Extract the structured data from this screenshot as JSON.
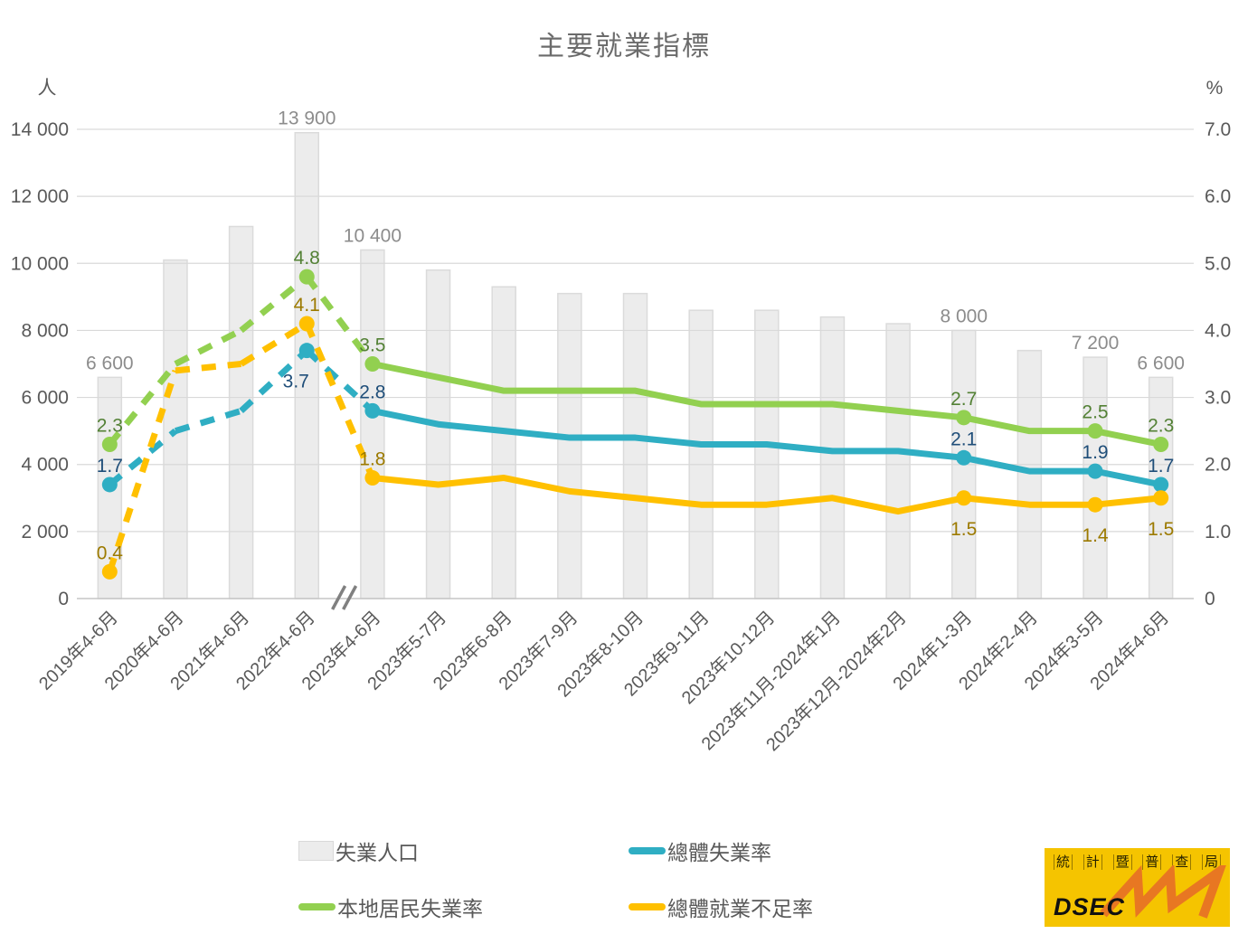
{
  "title": "主要就業指標",
  "left_axis": {
    "unit": "人",
    "ticks": [
      "14 000",
      "12 000",
      "10 000",
      "8 000",
      "6 000",
      "4 000",
      "2 000",
      "0"
    ]
  },
  "right_axis": {
    "unit": "%",
    "ticks": [
      "7.0",
      "6.0",
      "5.0",
      "4.0",
      "3.0",
      "2.0",
      "1.0",
      "0"
    ]
  },
  "chart_data": {
    "type": "bar+line",
    "categories": [
      "2019年4-6月",
      "2020年4-6月",
      "2021年4-6月",
      "2022年4-6月",
      "2023年4-6月",
      "2023年5-7月",
      "2023年6-8月",
      "2023年7-9月",
      "2023年8-10月",
      "2023年9-11月",
      "2023年10-12月",
      "2023年11月-2024年1月",
      "2023年12月-2024年2月",
      "2024年1-3月",
      "2024年2-4月",
      "2024年3-5月",
      "2024年4-6月"
    ],
    "ylim_left": [
      0,
      14000
    ],
    "ylim_right": [
      0,
      7.0
    ],
    "grid_step_left": 2000,
    "axis_break_between": [
      3,
      4
    ],
    "dashed_until_index": 4,
    "bars": {
      "name": "失業人口",
      "unit": "人",
      "color": "#ECECEC",
      "border_color": "#DBDBDB",
      "label_color": "#8C8C8C",
      "values": [
        6600,
        10100,
        11100,
        13900,
        10400,
        9800,
        9300,
        9100,
        9100,
        8600,
        8600,
        8400,
        8200,
        8000,
        7400,
        7200,
        6600
      ],
      "labels": [
        "6 600",
        null,
        null,
        "13 900",
        "10 400",
        null,
        null,
        null,
        null,
        null,
        null,
        null,
        null,
        "8 000",
        null,
        "7 200",
        "6 600"
      ]
    },
    "series": [
      {
        "name": "本地居民失業率",
        "color": "#92D050",
        "label_color": "#538135",
        "values": [
          2.3,
          3.5,
          4.0,
          4.8,
          3.5,
          3.3,
          3.1,
          3.1,
          3.1,
          2.9,
          2.9,
          2.9,
          2.8,
          2.7,
          2.5,
          2.5,
          2.3
        ],
        "labels": [
          "2.3",
          null,
          null,
          "4.8",
          "3.5",
          null,
          null,
          null,
          null,
          null,
          null,
          null,
          null,
          "2.7",
          null,
          "2.5",
          "2.3"
        ],
        "labels_below": []
      },
      {
        "name": "總體失業率",
        "color": "#2FAEC3",
        "label_color": "#1F4E79",
        "values": [
          1.7,
          2.5,
          2.8,
          3.7,
          2.8,
          2.6,
          2.5,
          2.4,
          2.4,
          2.3,
          2.3,
          2.2,
          2.2,
          2.1,
          1.9,
          1.9,
          1.7
        ],
        "labels": [
          "1.7",
          null,
          null,
          "3.7",
          "2.8",
          null,
          null,
          null,
          null,
          null,
          null,
          null,
          null,
          "2.1",
          null,
          "1.9",
          "1.7"
        ],
        "labels_below": [
          3
        ]
      },
      {
        "name": "總體就業不足率",
        "color": "#FFC000",
        "label_color": "#9C7A00",
        "values": [
          0.4,
          3.4,
          3.5,
          4.1,
          1.8,
          1.7,
          1.8,
          1.6,
          1.5,
          1.4,
          1.4,
          1.5,
          1.3,
          1.5,
          1.4,
          1.4,
          1.5
        ],
        "labels": [
          "0.4",
          null,
          null,
          "4.1",
          "1.8",
          null,
          null,
          null,
          null,
          null,
          null,
          null,
          null,
          "1.5",
          null,
          "1.4",
          "1.5"
        ],
        "labels_below": [
          13,
          15,
          16
        ]
      }
    ]
  },
  "legend": {
    "items": [
      {
        "label": "失業人口",
        "type": "bar",
        "color": "#ECECEC",
        "border": "#D9D9D9"
      },
      {
        "label": "總體失業率",
        "type": "line",
        "color": "#2FAEC3"
      },
      {
        "label": "本地居民失業率",
        "type": "line",
        "color": "#92D050"
      },
      {
        "label": "總體就業不足率",
        "type": "line",
        "color": "#FFC000"
      }
    ]
  },
  "logo": {
    "top_text": "統計暨普查局",
    "acronym": "DSEC"
  }
}
